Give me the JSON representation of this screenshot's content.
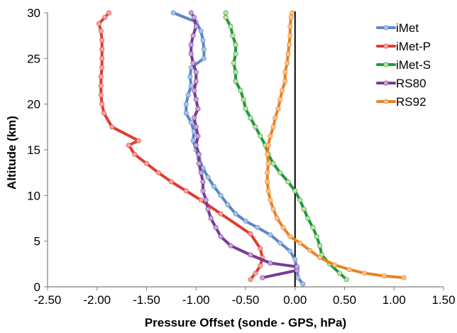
{
  "chart_data": {
    "type": "line",
    "title": "",
    "xlabel": "Pressure Offset (sonde - GPS, hPa)",
    "ylabel": "Altitude (km)",
    "xlim": [
      -2.5,
      1.5
    ],
    "ylim": [
      0,
      30
    ],
    "x_ticks": [
      "-2.50",
      "-2.00",
      "-1.50",
      "-1.00",
      "-0.50",
      "0.00",
      "0.50",
      "1.00",
      "1.50"
    ],
    "y_ticks": [
      "0",
      "5",
      "10",
      "15",
      "20",
      "25",
      "30"
    ],
    "grid": false,
    "legend_position": "top-right",
    "reference_line_x": 0,
    "series": [
      {
        "name": "iMet",
        "line_color": "#5B87C9",
        "marker_color": "#A9C2E6",
        "points": [
          [
            0.08,
            0.3
          ],
          [
            0.03,
            1.0
          ],
          [
            0.02,
            2.0
          ],
          [
            0.0,
            3.0
          ],
          [
            -0.05,
            3.9
          ],
          [
            -0.15,
            4.8
          ],
          [
            -0.25,
            5.7
          ],
          [
            -0.38,
            6.5
          ],
          [
            -0.5,
            7.2
          ],
          [
            -0.6,
            8.0
          ],
          [
            -0.68,
            9.0
          ],
          [
            -0.75,
            10.0
          ],
          [
            -0.82,
            11.0
          ],
          [
            -0.88,
            12.0
          ],
          [
            -0.93,
            13.0
          ],
          [
            -0.97,
            14.0
          ],
          [
            -1.0,
            15.0
          ],
          [
            -1.03,
            16.0
          ],
          [
            -1.02,
            17.0
          ],
          [
            -1.05,
            18.0
          ],
          [
            -1.1,
            19.0
          ],
          [
            -1.1,
            20.0
          ],
          [
            -1.08,
            21.0
          ],
          [
            -1.05,
            22.0
          ],
          [
            -1.06,
            23.0
          ],
          [
            -1.05,
            24.0
          ],
          [
            -0.92,
            25.0
          ],
          [
            -0.92,
            26.0
          ],
          [
            -0.93,
            27.0
          ],
          [
            -0.95,
            28.0
          ],
          [
            -1.0,
            29.0
          ],
          [
            -1.23,
            30.0
          ]
        ]
      },
      {
        "name": "iMet-P",
        "line_color": "#E03C31",
        "marker_color": "#F2A8A2",
        "points": [
          [
            -0.45,
            0.8
          ],
          [
            -0.4,
            1.5
          ],
          [
            -0.35,
            2.3
          ],
          [
            -0.33,
            3.2
          ],
          [
            -0.35,
            4.2
          ],
          [
            -0.45,
            5.8
          ],
          [
            -0.75,
            8.0
          ],
          [
            -0.95,
            9.5
          ],
          [
            -1.1,
            10.5
          ],
          [
            -1.25,
            11.5
          ],
          [
            -1.38,
            12.5
          ],
          [
            -1.5,
            13.5
          ],
          [
            -1.62,
            14.5
          ],
          [
            -1.68,
            15.5
          ],
          [
            -1.58,
            16.0
          ],
          [
            -1.85,
            17.5
          ],
          [
            -1.93,
            19.0
          ],
          [
            -1.95,
            20.0
          ],
          [
            -1.96,
            21.0
          ],
          [
            -1.96,
            22.0
          ],
          [
            -1.96,
            23.0
          ],
          [
            -1.95,
            24.0
          ],
          [
            -1.95,
            25.0
          ],
          [
            -1.95,
            26.0
          ],
          [
            -1.95,
            27.0
          ],
          [
            -1.96,
            28.0
          ],
          [
            -1.98,
            28.8
          ],
          [
            -1.92,
            29.5
          ],
          [
            -1.88,
            30.0
          ]
        ]
      },
      {
        "name": "iMet-S",
        "line_color": "#1E9A45",
        "marker_color": "#C7E297",
        "points": [
          [
            0.52,
            0.8
          ],
          [
            0.45,
            1.5
          ],
          [
            0.35,
            2.5
          ],
          [
            0.27,
            3.5
          ],
          [
            0.25,
            4.5
          ],
          [
            0.22,
            5.5
          ],
          [
            0.18,
            6.5
          ],
          [
            0.13,
            7.5
          ],
          [
            0.09,
            8.5
          ],
          [
            0.05,
            9.5
          ],
          [
            0.0,
            10.5
          ],
          [
            -0.07,
            11.5
          ],
          [
            -0.15,
            12.5
          ],
          [
            -0.22,
            13.5
          ],
          [
            -0.27,
            14.5
          ],
          [
            -0.3,
            15.5
          ],
          [
            -0.35,
            16.5
          ],
          [
            -0.4,
            17.5
          ],
          [
            -0.45,
            18.5
          ],
          [
            -0.5,
            19.5
          ],
          [
            -0.52,
            20.5
          ],
          [
            -0.55,
            21.5
          ],
          [
            -0.6,
            22.5
          ],
          [
            -0.6,
            23.5
          ],
          [
            -0.62,
            24.5
          ],
          [
            -0.6,
            25.5
          ],
          [
            -0.6,
            26.5
          ],
          [
            -0.63,
            27.5
          ],
          [
            -0.65,
            28.5
          ],
          [
            -0.7,
            29.5
          ],
          [
            -0.7,
            30.0
          ]
        ]
      },
      {
        "name": "RS80",
        "line_color": "#7A3A96",
        "marker_color": "#C8A6D8",
        "points": [
          [
            -0.33,
            1.0
          ],
          [
            0.02,
            1.8
          ],
          [
            0.02,
            2.2
          ],
          [
            -0.25,
            2.6
          ],
          [
            -0.45,
            3.5
          ],
          [
            -0.65,
            4.5
          ],
          [
            -0.75,
            5.5
          ],
          [
            -0.8,
            6.5
          ],
          [
            -0.85,
            7.5
          ],
          [
            -0.88,
            8.5
          ],
          [
            -0.9,
            9.5
          ],
          [
            -0.93,
            10.5
          ],
          [
            -0.93,
            11.5
          ],
          [
            -0.95,
            12.5
          ],
          [
            -0.97,
            13.5
          ],
          [
            -0.97,
            14.5
          ],
          [
            -1.0,
            15.5
          ],
          [
            -0.98,
            16.5
          ],
          [
            -1.0,
            17.5
          ],
          [
            -1.02,
            18.5
          ],
          [
            -0.98,
            19.5
          ],
          [
            -1.0,
            20.5
          ],
          [
            -1.02,
            21.5
          ],
          [
            -1.0,
            22.5
          ],
          [
            -1.0,
            23.5
          ],
          [
            -1.03,
            24.5
          ],
          [
            -1.05,
            25.5
          ],
          [
            -1.05,
            26.5
          ],
          [
            -1.03,
            27.5
          ],
          [
            -1.0,
            28.5
          ],
          [
            -1.02,
            29.5
          ],
          [
            -1.05,
            30.0
          ]
        ]
      },
      {
        "name": "RS92",
        "line_color": "#E8831F",
        "marker_color": "#F6C294",
        "points": [
          [
            1.1,
            1.0
          ],
          [
            0.9,
            1.2
          ],
          [
            0.7,
            1.5
          ],
          [
            0.55,
            1.9
          ],
          [
            0.4,
            2.4
          ],
          [
            0.25,
            3.2
          ],
          [
            0.15,
            4.0
          ],
          [
            0.05,
            4.8
          ],
          [
            -0.05,
            5.5
          ],
          [
            -0.12,
            6.5
          ],
          [
            -0.18,
            7.5
          ],
          [
            -0.22,
            8.5
          ],
          [
            -0.25,
            9.5
          ],
          [
            -0.27,
            10.5
          ],
          [
            -0.28,
            11.5
          ],
          [
            -0.28,
            12.5
          ],
          [
            -0.27,
            13.5
          ],
          [
            -0.28,
            14.5
          ],
          [
            -0.27,
            15.5
          ],
          [
            -0.25,
            16.5
          ],
          [
            -0.22,
            17.5
          ],
          [
            -0.2,
            18.5
          ],
          [
            -0.17,
            19.5
          ],
          [
            -0.15,
            20.5
          ],
          [
            -0.13,
            21.5
          ],
          [
            -0.1,
            22.5
          ],
          [
            -0.1,
            23.5
          ],
          [
            -0.08,
            24.5
          ],
          [
            -0.07,
            25.5
          ],
          [
            -0.06,
            26.5
          ],
          [
            -0.05,
            27.5
          ],
          [
            -0.05,
            28.5
          ],
          [
            -0.04,
            29.5
          ],
          [
            -0.03,
            30.0
          ]
        ]
      }
    ]
  }
}
